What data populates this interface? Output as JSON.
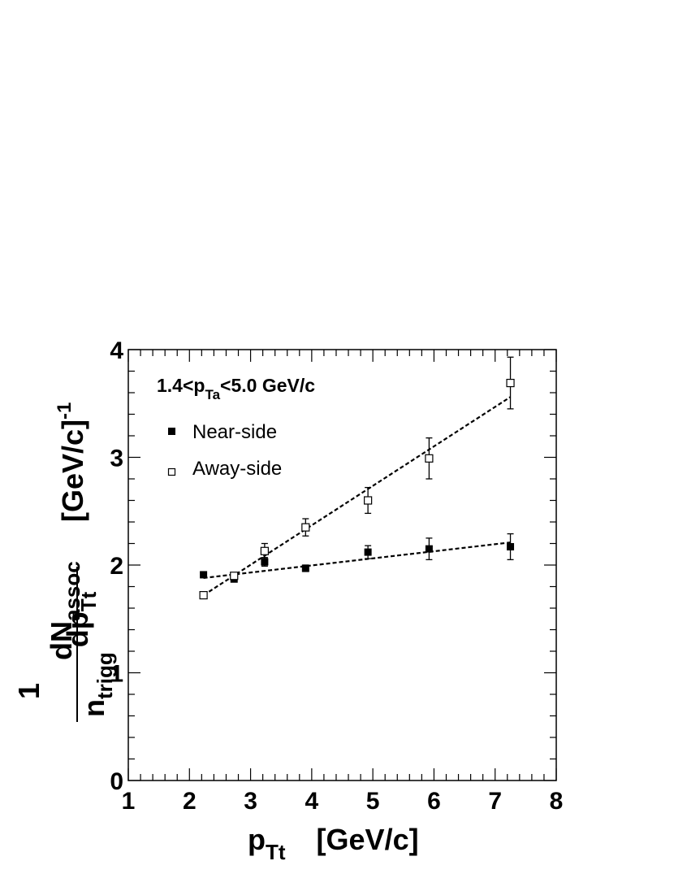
{
  "chart_data": {
    "type": "scatter",
    "annotation": {
      "main": "1.4<p",
      "sub": "Ta",
      "tail": "<5.0 GeV/c"
    },
    "xlabel": {
      "main": "p",
      "sub": "Tt",
      "unit": "[GeV/c]"
    },
    "ylabel": {
      "one": "1",
      "numerator_main": "dN",
      "numerator_sub": "assoc",
      "denom_main": "n",
      "denom_sub": "trigg",
      "denom_tail_main": "dp",
      "denom_tail_sub": "Tt",
      "unit_main": "[GeV/c]",
      "unit_sup": "-1"
    },
    "xlim": [
      1,
      8
    ],
    "ylim": [
      0,
      4
    ],
    "xticks": [
      "1",
      "2",
      "3",
      "4",
      "5",
      "6",
      "7",
      "8"
    ],
    "yticks": [
      "0",
      "1",
      "2",
      "3",
      "4"
    ],
    "grid": false,
    "legend_position": "top-left",
    "series": [
      {
        "name": "Near-side",
        "marker": "filled-square",
        "color": "#000000",
        "x": [
          2.23,
          2.73,
          3.23,
          3.9,
          4.92,
          5.92,
          7.25
        ],
        "y": [
          1.91,
          1.87,
          2.03,
          1.97,
          2.12,
          2.15,
          2.17
        ],
        "err": [
          0.02,
          0.02,
          0.04,
          0.03,
          0.06,
          0.1,
          0.12
        ],
        "fit": {
          "x": [
            2.23,
            7.25
          ],
          "y": [
            1.88,
            2.21
          ]
        }
      },
      {
        "name": "Away-side",
        "marker": "open-square",
        "color": "#000000",
        "x": [
          2.23,
          2.73,
          3.23,
          3.9,
          4.92,
          5.92,
          7.25
        ],
        "y": [
          1.72,
          1.9,
          2.13,
          2.35,
          2.6,
          2.99,
          3.69
        ],
        "err": [
          0.02,
          0.03,
          0.07,
          0.08,
          0.12,
          0.19,
          0.24
        ],
        "fit": {
          "x": [
            2.23,
            7.25
          ],
          "y": [
            1.72,
            3.56
          ]
        }
      }
    ]
  }
}
